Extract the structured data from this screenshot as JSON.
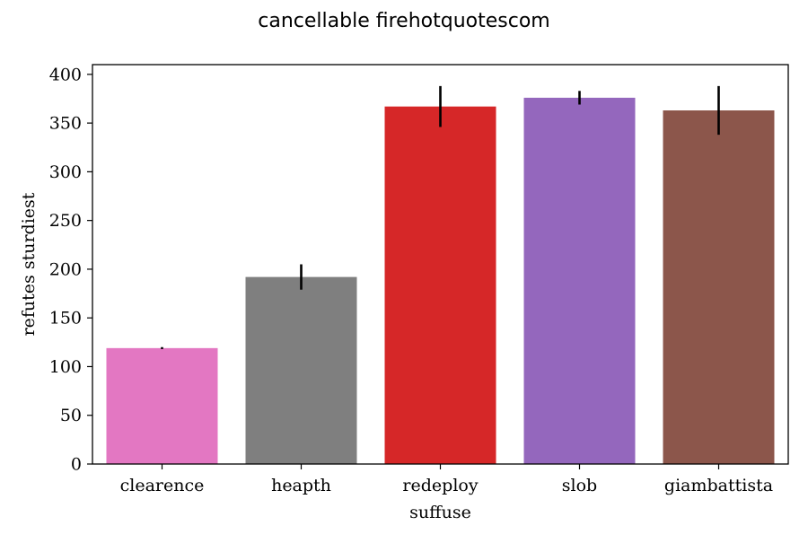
{
  "chart_data": {
    "type": "bar",
    "title": "cancellable firehotquotescom",
    "xlabel": "suffuse",
    "ylabel": "refutes sturdiest",
    "categories": [
      "clearence",
      "heapth",
      "redeploy",
      "slob",
      "giambattista"
    ],
    "values": [
      119,
      192,
      367,
      376,
      363
    ],
    "errors": [
      1,
      13,
      21,
      7,
      25
    ],
    "colors": [
      "#e377c2",
      "#7f7f7f",
      "#d62728",
      "#9467bd",
      "#8c564b"
    ],
    "ylim": [
      0,
      410
    ],
    "yticks": [
      0,
      50,
      100,
      150,
      200,
      250,
      300,
      350,
      400
    ],
    "grid": false,
    "legend": null
  }
}
